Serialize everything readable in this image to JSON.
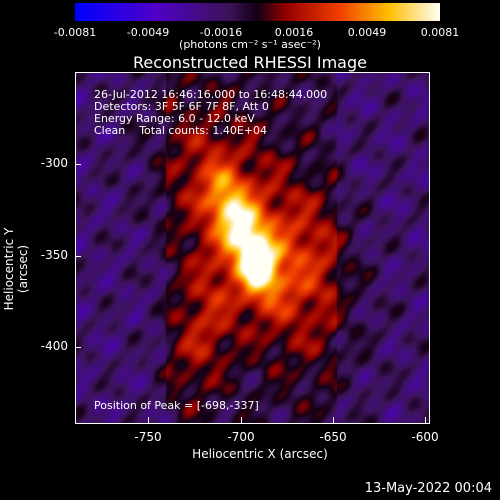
{
  "colorbar": {
    "ticks": [
      "-0.0081",
      "-0.0049",
      "-0.0016",
      "0.0016",
      "0.0049",
      "0.0081"
    ],
    "units": "(photons cm⁻² s⁻¹ asec⁻²)"
  },
  "title": "Reconstructed RHESSI Image",
  "annotations": {
    "time": "26-Jul-2012 16:46:16.000 to 16:48:44.000",
    "detectors": "Detectors: 3F 5F 6F 7F 8F, Att 0",
    "energy": "Energy Range: 6.0 - 12.0 keV",
    "method": "Clean    Total counts: 1.40E+04",
    "peak": "Position of Peak = [-698,-337]"
  },
  "axes": {
    "xlabel": "Heliocentric X (arcsec)",
    "ylabel": "Heliocentric Y (arcsec)",
    "xticks": [
      "-750",
      "-700",
      "-650",
      "-600"
    ],
    "yticks": [
      "-300",
      "-350",
      "-400"
    ]
  },
  "footer": "13-May-2022 00:04",
  "colors": {
    "background": "#000000",
    "text": "#ffffff"
  }
}
